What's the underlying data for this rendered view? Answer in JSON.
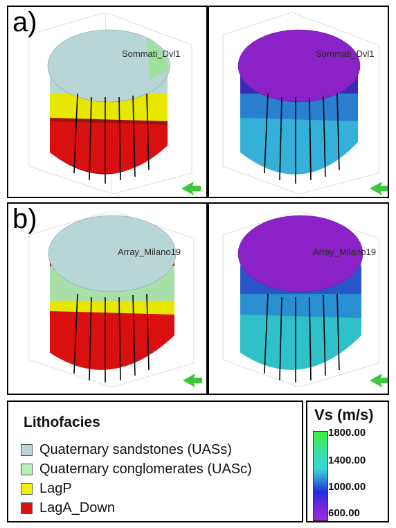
{
  "panels": {
    "a": {
      "label": "a)",
      "well_name": "Sommati_Dvl1"
    },
    "b": {
      "label": "b)",
      "well_name": "Array_Milano19"
    }
  },
  "lithofacies_legend": {
    "title": "Lithofacies",
    "items": [
      {
        "label": "Quaternary sandstones  (UASs)",
        "color": "#b9d6d6"
      },
      {
        "label": "Quaternary conglomerates (UASc)",
        "color": "#b6f0b6"
      },
      {
        "label": "LagP",
        "color": "#f2f200"
      },
      {
        "label": "LagA_Down",
        "color": "#e01010"
      }
    ]
  },
  "vs_legend": {
    "title": "Vs (m/s)",
    "ticks": [
      "1800.00",
      "1400.00",
      "1000.00",
      "600.00"
    ]
  }
}
